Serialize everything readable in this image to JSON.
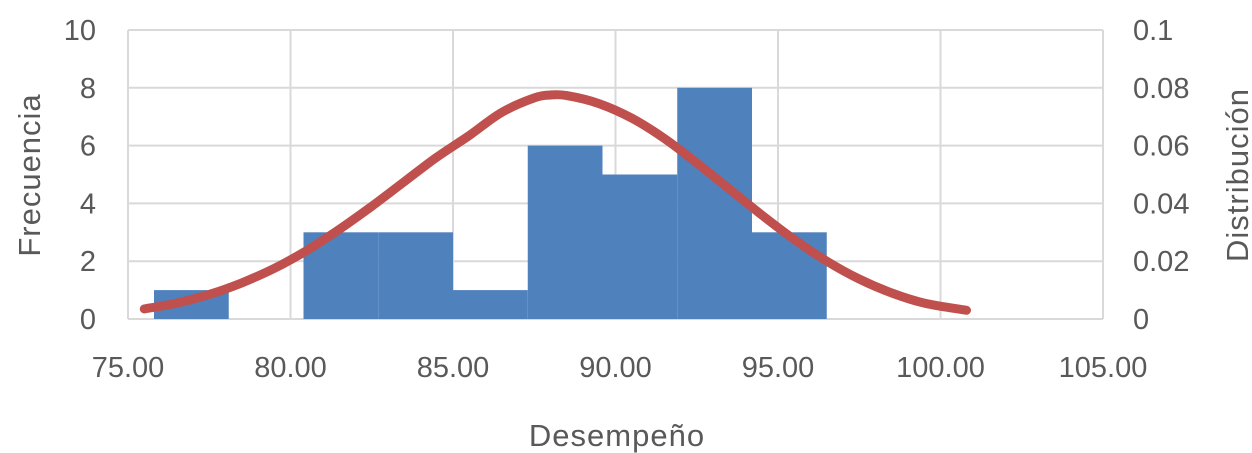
{
  "chart_data": {
    "type": "bar",
    "xlabel": "Desempeño",
    "ylabel": "Frecuencia",
    "y2label": "Distribución",
    "xlim": [
      75,
      105
    ],
    "ylim": [
      0,
      10
    ],
    "y2lim": [
      0,
      0.1
    ],
    "x_ticks": [
      "75.00",
      "80.00",
      "85.00",
      "90.00",
      "95.00",
      "100.00",
      "105.00"
    ],
    "y_ticks": [
      "0",
      "2",
      "4",
      "6",
      "8",
      "10"
    ],
    "y2_ticks": [
      "0",
      "0.02",
      "0.04",
      "0.06",
      "0.08",
      "0.1"
    ],
    "grid": true,
    "colors": {
      "bars": "#4f81bd",
      "curve": "#c0504d"
    },
    "bins": [
      {
        "x0": 75.8,
        "x1": 78.1,
        "value": 1
      },
      {
        "x0": 80.4,
        "x1": 82.7,
        "value": 3
      },
      {
        "x0": 82.7,
        "x1": 85.0,
        "value": 3
      },
      {
        "x0": 85.0,
        "x1": 87.3,
        "value": 1
      },
      {
        "x0": 87.3,
        "x1": 89.6,
        "value": 6
      },
      {
        "x0": 89.6,
        "x1": 91.9,
        "value": 5
      },
      {
        "x0": 91.9,
        "x1": 94.2,
        "value": 8
      },
      {
        "x0": 94.2,
        "x1": 96.5,
        "value": 3
      }
    ],
    "curve": {
      "x": [
        75.5,
        76.5,
        77.5,
        78.5,
        79.5,
        80.5,
        81.5,
        82.5,
        83.5,
        84.5,
        85.5,
        86.5,
        87.5,
        88.0,
        88.5,
        89.5,
        90.5,
        91.5,
        92.5,
        93.5,
        94.5,
        95.5,
        96.5,
        97.5,
        98.5,
        99.5,
        100.8
      ],
      "y": [
        0.0035,
        0.0055,
        0.0085,
        0.0125,
        0.0175,
        0.0237,
        0.031,
        0.039,
        0.0475,
        0.056,
        0.0635,
        0.0715,
        0.0765,
        0.0775,
        0.0773,
        0.0745,
        0.0695,
        0.0625,
        0.054,
        0.045,
        0.036,
        0.0275,
        0.02,
        0.0138,
        0.009,
        0.0055,
        0.003
      ]
    }
  }
}
